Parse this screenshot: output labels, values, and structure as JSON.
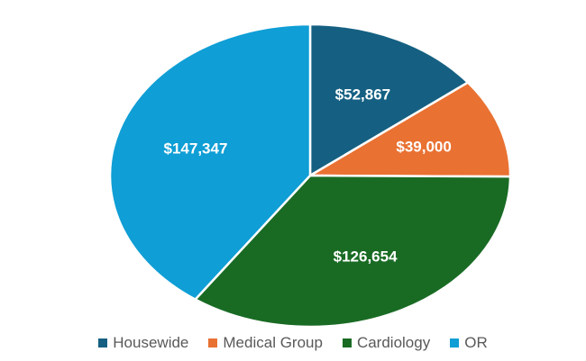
{
  "chart_data": {
    "type": "pie",
    "title": "",
    "categories": [
      "Housewide",
      "Medical Group",
      "Cardiology",
      "OR"
    ],
    "values": [
      52867,
      39000,
      126654,
      147347
    ],
    "data_labels": [
      "$52,867",
      "$39,000",
      "$126,654",
      "$147,347"
    ],
    "colors": [
      "#156082",
      "#E97132",
      "#196B24",
      "#0F9ED5"
    ],
    "start_angle": "12 o'clock",
    "direction": "clockwise",
    "legend_position": "bottom"
  }
}
